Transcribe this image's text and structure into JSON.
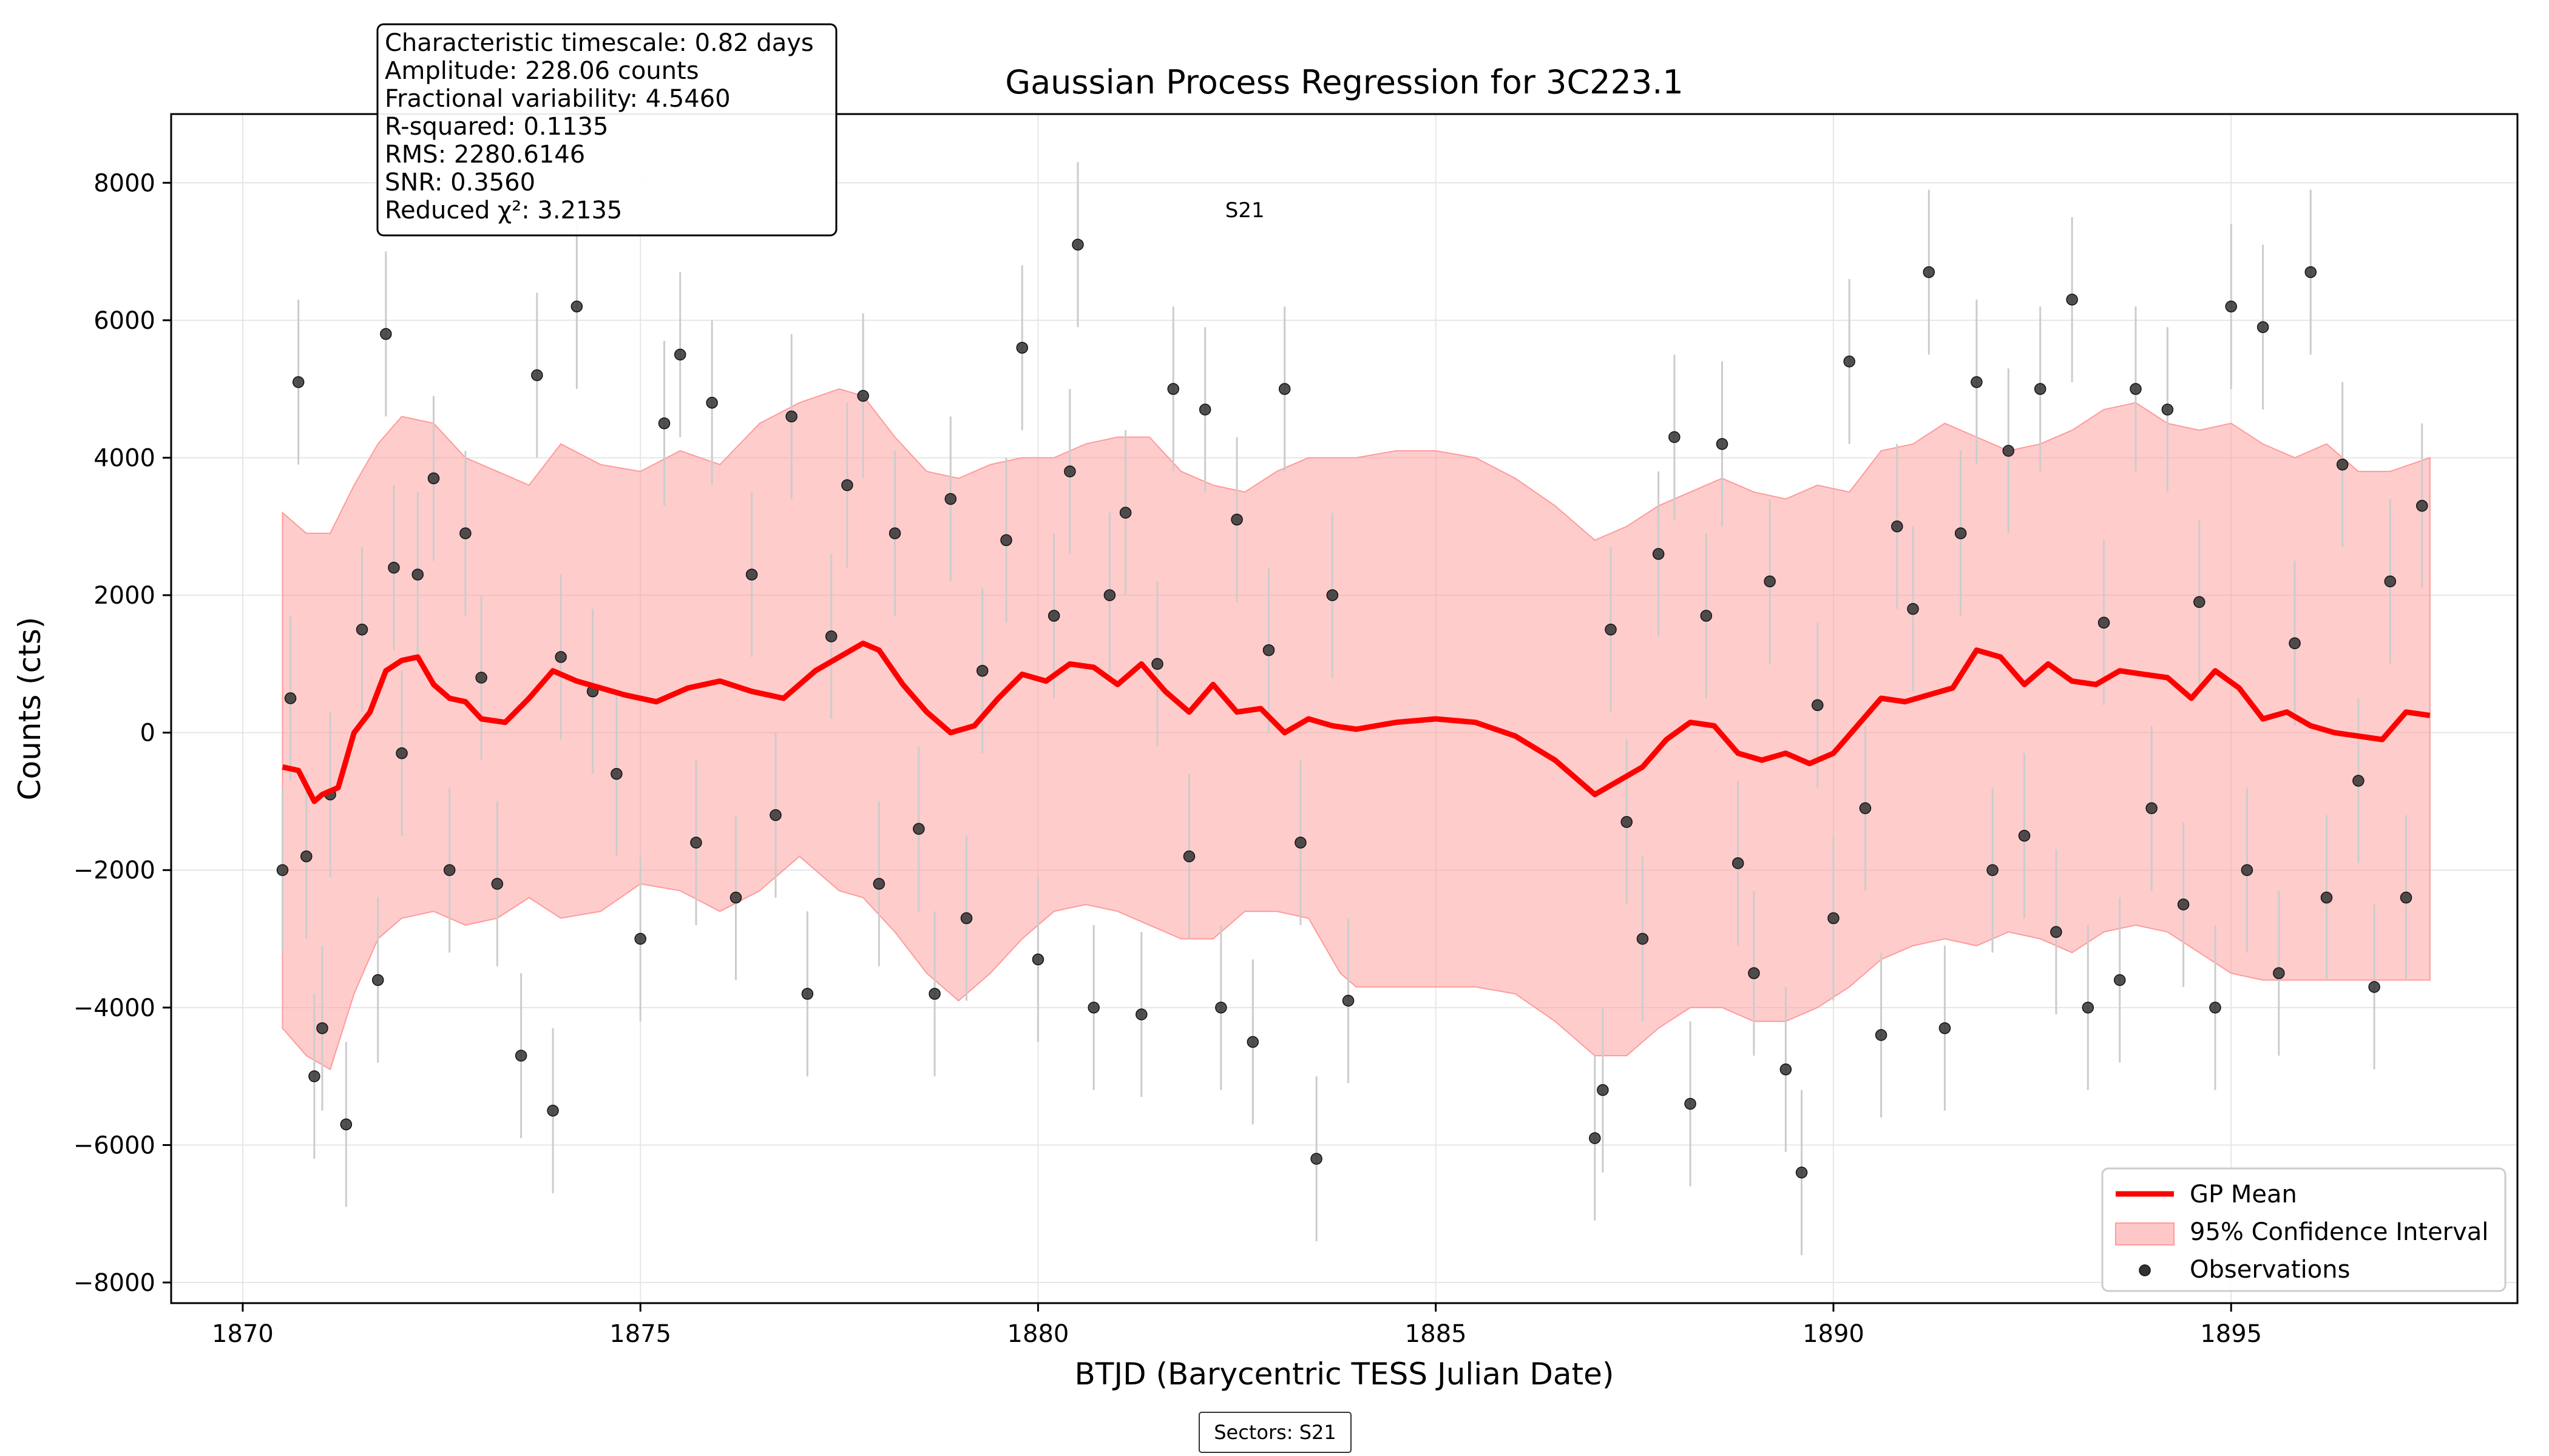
{
  "chart_data": {
    "type": "scatter",
    "title": "Gaussian Process Regression for 3C223.1",
    "xlabel": "BTJD (Barycentric TESS Julian Date)",
    "ylabel": "Counts (cts)",
    "xlim": [
      1869.1,
      1898.6
    ],
    "ylim": [
      -8300,
      9000
    ],
    "x_ticks": [
      1870,
      1875,
      1880,
      1885,
      1890,
      1895
    ],
    "y_ticks": [
      -8000,
      -6000,
      -4000,
      -2000,
      0,
      2000,
      4000,
      6000,
      8000
    ],
    "grid": true,
    "legend_position": "lower-right",
    "stats_box": {
      "lines": [
        "Characteristic timescale: 0.82 days",
        "Amplitude: 228.06 counts",
        "Fractional variability: 4.5460",
        "R-squared: 0.1135",
        "RMS: 2280.6146",
        "SNR: 0.3560",
        "Reduced χ²: 3.2135"
      ]
    },
    "sector_label": {
      "text": "S21",
      "x": 1882.6,
      "y": 7500
    },
    "sectors_footer": "Sectors: S21",
    "colors": {
      "gp_mean": "#ff0000",
      "confidence": "#ff9a9a",
      "observations": "#333333",
      "errorbars": "#cccccc"
    },
    "series": [
      {
        "name": "GP Mean",
        "kind": "line",
        "x": [
          1870.5,
          1870.7,
          1870.9,
          1871.0,
          1871.2,
          1871.4,
          1871.6,
          1871.8,
          1872.0,
          1872.2,
          1872.4,
          1872.6,
          1872.8,
          1873.0,
          1873.3,
          1873.6,
          1873.9,
          1874.2,
          1874.5,
          1874.8,
          1875.2,
          1875.6,
          1876.0,
          1876.4,
          1876.8,
          1877.2,
          1877.5,
          1877.8,
          1878.0,
          1878.3,
          1878.6,
          1878.9,
          1879.2,
          1879.5,
          1879.8,
          1880.1,
          1880.4,
          1880.7,
          1881.0,
          1881.3,
          1881.6,
          1881.9,
          1882.2,
          1882.5,
          1882.8,
          1883.1,
          1883.4,
          1883.7,
          1884.0,
          1884.5,
          1885.0,
          1885.5,
          1886.0,
          1886.5,
          1887.0,
          1887.3,
          1887.6,
          1887.9,
          1888.2,
          1888.5,
          1888.8,
          1889.1,
          1889.4,
          1889.7,
          1890.0,
          1890.3,
          1890.6,
          1890.9,
          1891.2,
          1891.5,
          1891.8,
          1892.1,
          1892.4,
          1892.7,
          1893.0,
          1893.3,
          1893.6,
          1893.9,
          1894.2,
          1894.5,
          1894.8,
          1895.1,
          1895.4,
          1895.7,
          1896.0,
          1896.3,
          1896.6,
          1896.9,
          1897.2,
          1897.5
        ],
        "y": [
          -500,
          -550,
          -1000,
          -900,
          -800,
          0,
          300,
          900,
          1050,
          1100,
          700,
          500,
          450,
          200,
          150,
          500,
          900,
          750,
          650,
          550,
          450,
          650,
          750,
          600,
          500,
          900,
          1100,
          1300,
          1200,
          700,
          300,
          0,
          100,
          500,
          850,
          750,
          1000,
          950,
          700,
          1000,
          600,
          300,
          700,
          300,
          350,
          0,
          200,
          100,
          50,
          150,
          200,
          150,
          -50,
          -400,
          -900,
          -700,
          -500,
          -100,
          150,
          100,
          -300,
          -400,
          -300,
          -450,
          -300,
          100,
          500,
          450,
          550,
          650,
          1200,
          1100,
          700,
          1000,
          750,
          700,
          900,
          850,
          800,
          500,
          900,
          650,
          200,
          300,
          100,
          0,
          -50,
          -100,
          300,
          250
        ]
      },
      {
        "name": "95% Confidence Interval",
        "kind": "band",
        "x": [
          1870.5,
          1870.8,
          1871.1,
          1871.4,
          1871.7,
          1872.0,
          1872.4,
          1872.8,
          1873.2,
          1873.6,
          1874.0,
          1874.5,
          1875.0,
          1875.5,
          1876.0,
          1876.5,
          1877.0,
          1877.5,
          1877.8,
          1878.2,
          1878.6,
          1879.0,
          1879.4,
          1879.8,
          1880.2,
          1880.6,
          1881.0,
          1881.4,
          1881.8,
          1882.2,
          1882.6,
          1883.0,
          1883.4,
          1883.8,
          1884.0,
          1884.5,
          1885.0,
          1885.5,
          1886.0,
          1886.5,
          1887.0,
          1887.4,
          1887.8,
          1888.2,
          1888.6,
          1889.0,
          1889.4,
          1889.8,
          1890.2,
          1890.6,
          1891.0,
          1891.4,
          1891.8,
          1892.2,
          1892.6,
          1893.0,
          1893.4,
          1893.8,
          1894.2,
          1894.6,
          1895.0,
          1895.4,
          1895.8,
          1896.2,
          1896.6,
          1897.0,
          1897.5
        ],
        "upper": [
          3200,
          2900,
          2900,
          3600,
          4200,
          4600,
          4500,
          4000,
          3800,
          3600,
          4200,
          3900,
          3800,
          4100,
          3900,
          4500,
          4800,
          5000,
          4900,
          4300,
          3800,
          3700,
          3900,
          4000,
          4000,
          4200,
          4300,
          4300,
          3800,
          3600,
          3500,
          3800,
          4000,
          4000,
          4000,
          4100,
          4100,
          4000,
          3700,
          3300,
          2800,
          3000,
          3300,
          3500,
          3700,
          3500,
          3400,
          3600,
          3500,
          4100,
          4200,
          4500,
          4300,
          4100,
          4200,
          4400,
          4700,
          4800,
          4500,
          4400,
          4500,
          4200,
          4000,
          4200,
          3800,
          3800,
          4000
        ],
        "lower": [
          -4300,
          -4700,
          -4900,
          -3800,
          -3000,
          -2700,
          -2600,
          -2800,
          -2700,
          -2400,
          -2700,
          -2600,
          -2200,
          -2300,
          -2600,
          -2300,
          -1800,
          -2300,
          -2400,
          -2900,
          -3500,
          -3900,
          -3500,
          -3000,
          -2600,
          -2500,
          -2600,
          -2800,
          -3000,
          -3000,
          -2600,
          -2600,
          -2700,
          -3500,
          -3700,
          -3700,
          -3700,
          -3700,
          -3800,
          -4200,
          -4700,
          -4700,
          -4300,
          -4000,
          -4000,
          -4200,
          -4200,
          -4000,
          -3700,
          -3300,
          -3100,
          -3000,
          -3100,
          -2900,
          -3000,
          -3200,
          -2900,
          -2800,
          -2900,
          -3200,
          -3500,
          -3600,
          -3600,
          -3600,
          -3600,
          -3600,
          -3600
        ]
      },
      {
        "name": "Observations",
        "kind": "scatter",
        "x": [
          1870.5,
          1870.6,
          1870.7,
          1870.8,
          1870.9,
          1871.0,
          1871.1,
          1871.3,
          1871.5,
          1871.7,
          1871.8,
          1871.9,
          1872.0,
          1872.2,
          1872.4,
          1872.6,
          1872.8,
          1873.0,
          1873.2,
          1873.5,
          1873.7,
          1873.9,
          1874.0,
          1874.2,
          1874.4,
          1874.7,
          1875.0,
          1875.3,
          1875.5,
          1875.7,
          1875.9,
          1876.2,
          1876.4,
          1876.7,
          1876.9,
          1877.1,
          1877.4,
          1877.6,
          1877.8,
          1878.0,
          1878.2,
          1878.5,
          1878.7,
          1878.9,
          1879.1,
          1879.3,
          1879.6,
          1879.8,
          1880.0,
          1880.2,
          1880.4,
          1880.5,
          1880.7,
          1880.9,
          1881.1,
          1881.3,
          1881.5,
          1881.7,
          1881.9,
          1882.1,
          1882.3,
          1882.5,
          1882.7,
          1882.9,
          1883.1,
          1883.3,
          1883.5,
          1883.7,
          1883.9,
          1887.0,
          1887.1,
          1887.2,
          1887.4,
          1887.6,
          1887.8,
          1888.0,
          1888.2,
          1888.4,
          1888.6,
          1888.8,
          1889.0,
          1889.2,
          1889.4,
          1889.6,
          1889.8,
          1890.0,
          1890.2,
          1890.4,
          1890.6,
          1890.8,
          1891.0,
          1891.2,
          1891.4,
          1891.6,
          1891.8,
          1892.0,
          1892.2,
          1892.4,
          1892.6,
          1892.8,
          1893.0,
          1893.2,
          1893.4,
          1893.6,
          1893.8,
          1894.0,
          1894.2,
          1894.4,
          1894.6,
          1894.8,
          1895.0,
          1895.2,
          1895.4,
          1895.6,
          1895.8,
          1896.0,
          1896.2,
          1896.4,
          1896.6,
          1896.8,
          1897.0,
          1897.2,
          1897.4
        ],
        "y": [
          -2000,
          500,
          5100,
          -1800,
          -5000,
          -4300,
          -900,
          -5700,
          1500,
          -3600,
          5800,
          2400,
          -300,
          2300,
          3700,
          -2000,
          2900,
          800,
          -2200,
          -4700,
          5200,
          -5500,
          1100,
          6200,
          600,
          -600,
          -3000,
          4500,
          5500,
          -1600,
          4800,
          -2400,
          2300,
          -1200,
          4600,
          -3800,
          1400,
          3600,
          4900,
          -2200,
          2900,
          -1400,
          -3800,
          3400,
          -2700,
          900,
          2800,
          5600,
          -3300,
          1700,
          3800,
          7100,
          -4000,
          2000,
          3200,
          -4100,
          1000,
          5000,
          -1800,
          4700,
          -4000,
          3100,
          -4500,
          1200,
          5000,
          -1600,
          -6200,
          2000,
          -3900,
          -5900,
          -5200,
          1500,
          -1300,
          -3000,
          2600,
          4300,
          -5400,
          1700,
          4200,
          -1900,
          -3500,
          2200,
          -4900,
          -6400,
          400,
          -2700,
          5400,
          -1100,
          -4400,
          3000,
          1800,
          6700,
          -4300,
          2900,
          5100,
          -2000,
          4100,
          -1500,
          5000,
          -2900,
          6300,
          -4000,
          1600,
          -3600,
          5000,
          -1100,
          4700,
          -2500,
          1900,
          -4000,
          6200,
          -2000,
          5900,
          -3500,
          1300,
          6700,
          -2400,
          3900,
          -700,
          -3700,
          2200,
          -2400,
          3300
        ]
      }
    ]
  }
}
